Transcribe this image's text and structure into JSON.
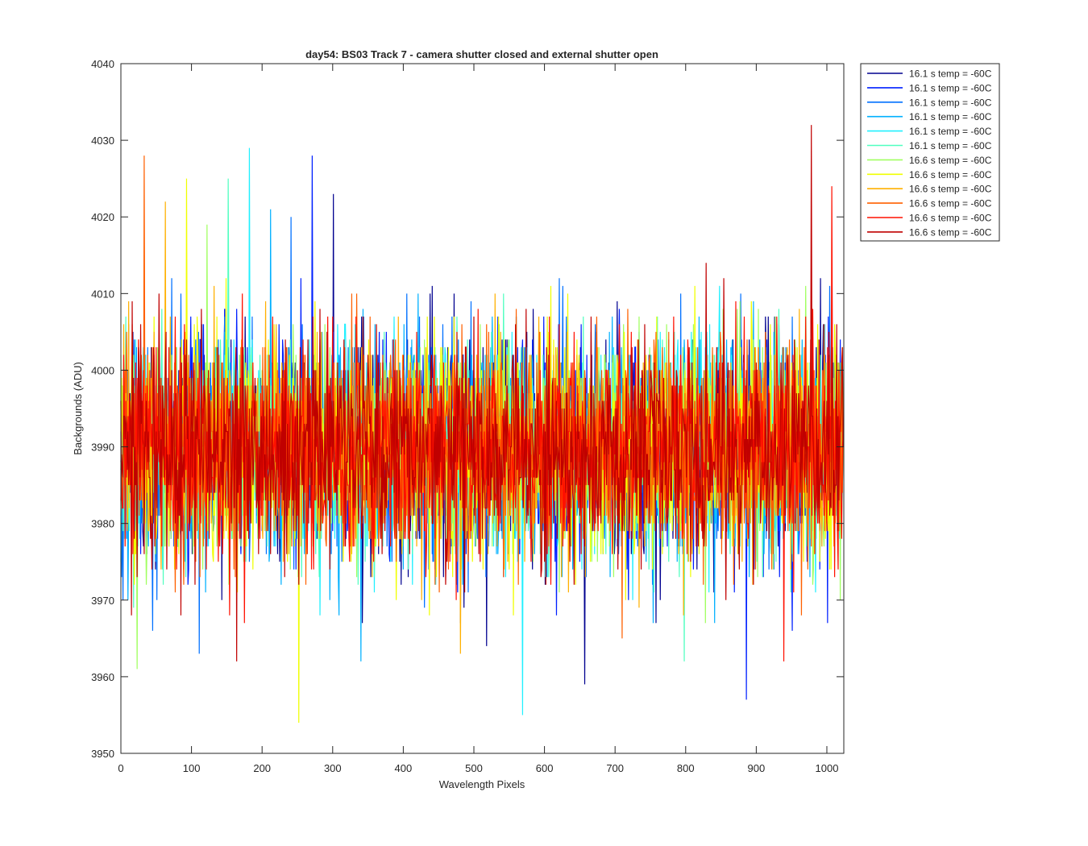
{
  "chart_data": {
    "type": "line",
    "title": "day54: BS03  Track 7 - camera shutter closed and external shutter open",
    "xlabel": "Wavelength Pixels",
    "ylabel": "Backgrounds (ADU)",
    "xlim": [
      0,
      1024
    ],
    "ylim": [
      3950,
      4040
    ],
    "x_ticks": [
      0,
      100,
      200,
      300,
      400,
      500,
      600,
      700,
      800,
      900,
      1000
    ],
    "y_ticks": [
      3950,
      3960,
      3970,
      3980,
      3990,
      4000,
      4010,
      4020,
      4030,
      4040
    ],
    "x_tick_labels": [
      "0",
      "100",
      "200",
      "300",
      "400",
      "500",
      "600",
      "700",
      "800",
      "900",
      "1000"
    ],
    "y_tick_labels": [
      "3950",
      "3960",
      "3970",
      "3980",
      "3990",
      "4000",
      "4010",
      "4020",
      "4030",
      "4040"
    ],
    "grid": false,
    "legend_position": "outside-top-right",
    "x_range": [
      0,
      1023
    ],
    "series": [
      {
        "name": "16.1 s temp = -60C",
        "color": "#00008f",
        "mean": 3990,
        "stddev": 7.0,
        "min": 3959,
        "max": 4023
      },
      {
        "name": "16.1 s temp = -60C",
        "color": "#0020ff",
        "mean": 3990,
        "stddev": 7.0,
        "min": 3957,
        "max": 4028
      },
      {
        "name": "16.1 s temp = -60C",
        "color": "#0070ff",
        "mean": 3990,
        "stddev": 7.0,
        "min": 3963,
        "max": 4020
      },
      {
        "name": "16.1 s temp = -60C",
        "color": "#00b0ff",
        "mean": 3990,
        "stddev": 7.0,
        "min": 3962,
        "max": 4021
      },
      {
        "name": "16.1 s temp = -60C",
        "color": "#20f0ff",
        "mean": 3990,
        "stddev": 7.0,
        "min": 3955,
        "max": 4029
      },
      {
        "name": "16.1 s temp = -60C",
        "color": "#50ffc0",
        "mean": 3990,
        "stddev": 7.0,
        "min": 3962,
        "max": 4025
      },
      {
        "name": "16.6 s temp = -60C",
        "color": "#a0ff60",
        "mean": 3990,
        "stddev": 7.0,
        "min": 3961,
        "max": 4019
      },
      {
        "name": "16.6 s temp = -60C",
        "color": "#f0ff00",
        "mean": 3990,
        "stddev": 7.0,
        "min": 3954,
        "max": 4025
      },
      {
        "name": "16.6 s temp = -60C",
        "color": "#ffb000",
        "mean": 3990,
        "stddev": 7.0,
        "min": 3963,
        "max": 4022
      },
      {
        "name": "16.6 s temp = -60C",
        "color": "#ff6000",
        "mean": 3990,
        "stddev": 7.0,
        "min": 3965,
        "max": 4028
      },
      {
        "name": "16.6 s temp = -60C",
        "color": "#ff1000",
        "mean": 3990,
        "stddev": 7.0,
        "min": 3962,
        "max": 4024
      },
      {
        "name": "16.6 s temp = -60C",
        "color": "#c00000",
        "mean": 3990,
        "stddev": 7.0,
        "min": 3962,
        "max": 4032
      }
    ]
  }
}
